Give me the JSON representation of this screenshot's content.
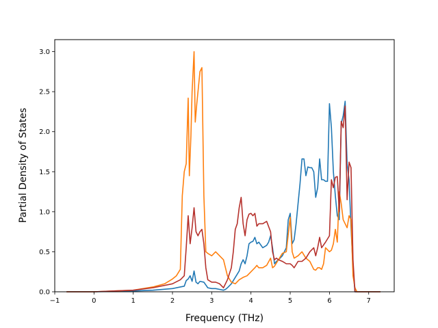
{
  "chart_data": {
    "type": "line",
    "title": "",
    "xlabel": "Frequency (THz)",
    "ylabel": "Partial Density of States",
    "xlim": [
      -1.0,
      7.65
    ],
    "ylim": [
      0.0,
      3.15
    ],
    "xticks": [
      -1,
      0,
      1,
      2,
      3,
      4,
      5,
      6,
      7
    ],
    "yticks": [
      0.0,
      0.5,
      1.0,
      1.5,
      2.0,
      2.5,
      3.0
    ],
    "xtick_labels": [
      "−1",
      "0",
      "1",
      "2",
      "3",
      "4",
      "5",
      "6",
      "7"
    ],
    "ytick_labels": [
      "0.0",
      "0.5",
      "1.0",
      "1.5",
      "2.0",
      "2.5",
      "3.0"
    ],
    "grid": false,
    "legend": "none",
    "series": [
      {
        "color": "#1f77b4",
        "x": [
          -0.7,
          -0.3,
          0.0,
          0.5,
          1.0,
          1.5,
          2.0,
          2.2,
          2.3,
          2.35,
          2.4,
          2.45,
          2.5,
          2.55,
          2.6,
          2.65,
          2.7,
          2.8,
          2.9,
          3.0,
          3.1,
          3.2,
          3.3,
          3.35,
          3.4,
          3.5,
          3.6,
          3.7,
          3.75,
          3.8,
          3.85,
          3.9,
          3.95,
          4.0,
          4.05,
          4.1,
          4.15,
          4.2,
          4.3,
          4.4,
          4.45,
          4.5,
          4.55,
          4.6,
          4.65,
          4.7,
          4.8,
          4.9,
          4.95,
          5.0,
          5.05,
          5.1,
          5.15,
          5.2,
          5.25,
          5.3,
          5.35,
          5.4,
          5.45,
          5.5,
          5.55,
          5.6,
          5.65,
          5.7,
          5.75,
          5.8,
          5.85,
          5.9,
          5.95,
          6.0,
          6.05,
          6.1,
          6.15,
          6.2,
          6.25,
          6.3,
          6.35,
          6.4,
          6.45,
          6.5,
          6.55,
          6.6,
          6.65,
          6.7,
          6.8,
          7.0,
          7.3
        ],
        "y": [
          0.0,
          0.0,
          0.0,
          0.005,
          0.01,
          0.02,
          0.04,
          0.06,
          0.07,
          0.14,
          0.16,
          0.2,
          0.13,
          0.26,
          0.12,
          0.1,
          0.13,
          0.12,
          0.05,
          0.04,
          0.04,
          0.03,
          0.02,
          0.03,
          0.05,
          0.1,
          0.18,
          0.26,
          0.35,
          0.4,
          0.35,
          0.45,
          0.6,
          0.62,
          0.63,
          0.68,
          0.6,
          0.62,
          0.55,
          0.58,
          0.62,
          0.7,
          0.55,
          0.35,
          0.38,
          0.4,
          0.45,
          0.55,
          0.9,
          0.98,
          0.6,
          0.65,
          0.85,
          1.1,
          1.35,
          1.66,
          1.66,
          1.45,
          1.56,
          1.55,
          1.55,
          1.5,
          1.18,
          1.3,
          1.66,
          1.4,
          1.4,
          1.38,
          1.38,
          2.35,
          2.05,
          1.5,
          1.2,
          0.95,
          0.9,
          2.1,
          2.2,
          2.38,
          1.6,
          1.4,
          0.8,
          0.3,
          0.0,
          0.0,
          0.0,
          0.0,
          0.0
        ]
      },
      {
        "color": "#ff7f0e",
        "x": [
          -0.7,
          -0.3,
          0.0,
          0.5,
          1.0,
          1.5,
          1.8,
          2.0,
          2.1,
          2.2,
          2.25,
          2.3,
          2.35,
          2.4,
          2.43,
          2.47,
          2.5,
          2.55,
          2.58,
          2.62,
          2.66,
          2.7,
          2.75,
          2.8,
          2.85,
          2.9,
          3.0,
          3.1,
          3.2,
          3.3,
          3.4,
          3.5,
          3.6,
          3.7,
          3.8,
          3.9,
          4.0,
          4.1,
          4.15,
          4.2,
          4.3,
          4.4,
          4.5,
          4.55,
          4.6,
          4.7,
          4.8,
          4.9,
          5.0,
          5.05,
          5.1,
          5.2,
          5.3,
          5.4,
          5.5,
          5.6,
          5.65,
          5.7,
          5.75,
          5.8,
          5.85,
          5.9,
          6.0,
          6.05,
          6.1,
          6.15,
          6.2,
          6.25,
          6.3,
          6.35,
          6.4,
          6.45,
          6.5,
          6.55,
          6.6,
          6.65,
          6.7,
          6.8,
          7.0,
          7.3
        ],
        "y": [
          0.0,
          0.0,
          0.0,
          0.01,
          0.02,
          0.06,
          0.1,
          0.16,
          0.2,
          0.28,
          1.2,
          1.5,
          1.6,
          2.42,
          1.45,
          1.95,
          2.5,
          3.0,
          2.12,
          2.35,
          2.55,
          2.75,
          2.8,
          1.2,
          0.5,
          0.48,
          0.45,
          0.5,
          0.45,
          0.4,
          0.2,
          0.12,
          0.1,
          0.15,
          0.18,
          0.2,
          0.25,
          0.3,
          0.33,
          0.3,
          0.3,
          0.33,
          0.42,
          0.3,
          0.32,
          0.4,
          0.48,
          0.5,
          0.93,
          0.5,
          0.42,
          0.45,
          0.5,
          0.42,
          0.38,
          0.28,
          0.27,
          0.3,
          0.3,
          0.28,
          0.35,
          0.55,
          0.5,
          0.52,
          0.6,
          0.78,
          0.62,
          1.25,
          1.1,
          0.9,
          0.85,
          0.8,
          0.95,
          0.9,
          0.2,
          0.05,
          0.0,
          0.0,
          0.0,
          0.0
        ]
      },
      {
        "color": "#b5302b",
        "x": [
          -0.7,
          -0.3,
          0.0,
          0.5,
          1.0,
          1.5,
          2.0,
          2.2,
          2.3,
          2.35,
          2.4,
          2.45,
          2.5,
          2.55,
          2.6,
          2.65,
          2.7,
          2.75,
          2.8,
          2.85,
          2.9,
          3.0,
          3.1,
          3.2,
          3.3,
          3.4,
          3.5,
          3.55,
          3.6,
          3.65,
          3.7,
          3.75,
          3.8,
          3.85,
          3.9,
          3.95,
          4.0,
          4.05,
          4.1,
          4.15,
          4.2,
          4.3,
          4.4,
          4.5,
          4.55,
          4.6,
          4.65,
          4.7,
          4.8,
          4.9,
          5.0,
          5.05,
          5.1,
          5.2,
          5.3,
          5.4,
          5.5,
          5.6,
          5.65,
          5.7,
          5.75,
          5.8,
          5.9,
          6.0,
          6.05,
          6.1,
          6.15,
          6.2,
          6.25,
          6.3,
          6.35,
          6.4,
          6.45,
          6.5,
          6.55,
          6.6,
          6.65,
          6.7,
          6.8,
          7.0,
          7.3
        ],
        "y": [
          0.0,
          0.0,
          0.0,
          0.01,
          0.02,
          0.05,
          0.1,
          0.15,
          0.2,
          0.55,
          0.95,
          0.6,
          0.8,
          1.05,
          0.75,
          0.7,
          0.75,
          0.78,
          0.6,
          0.3,
          0.15,
          0.12,
          0.12,
          0.1,
          0.05,
          0.15,
          0.3,
          0.5,
          0.78,
          0.85,
          1.05,
          1.18,
          0.85,
          0.7,
          0.9,
          0.97,
          0.98,
          0.95,
          0.98,
          0.82,
          0.85,
          0.85,
          0.88,
          0.75,
          0.5,
          0.4,
          0.42,
          0.4,
          0.38,
          0.35,
          0.35,
          0.33,
          0.3,
          0.38,
          0.38,
          0.42,
          0.5,
          0.55,
          0.45,
          0.55,
          0.68,
          0.55,
          0.62,
          0.7,
          1.4,
          1.3,
          1.43,
          1.44,
          1.0,
          2.13,
          2.05,
          2.32,
          1.15,
          1.62,
          1.55,
          0.4,
          0.0,
          0.0,
          0.0,
          0.0,
          0.0
        ]
      }
    ]
  }
}
